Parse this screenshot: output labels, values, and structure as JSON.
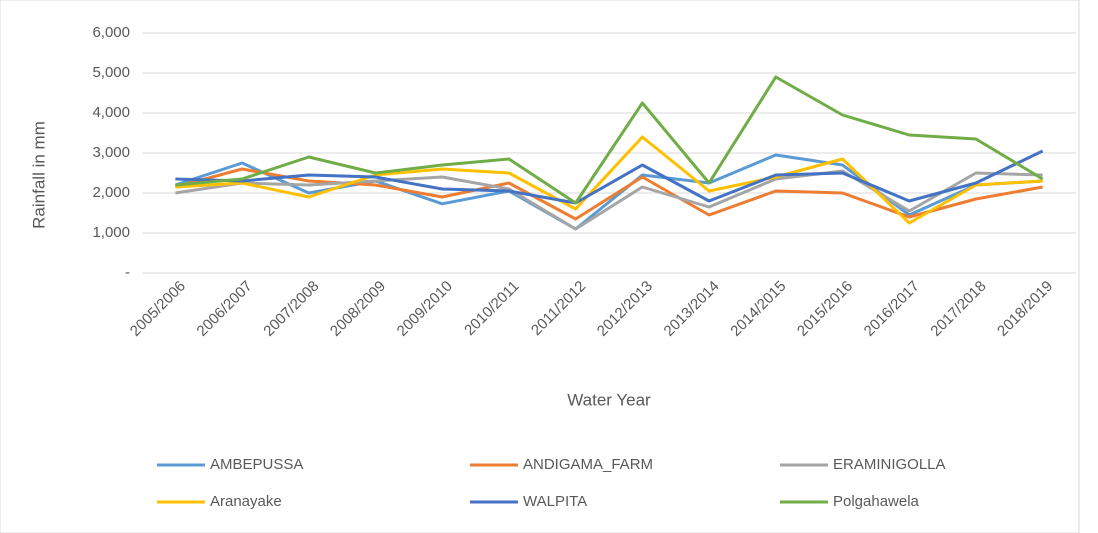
{
  "chart_data": {
    "type": "line",
    "y_label": "Rainfall in mm",
    "x_label": "Water Year",
    "categories": [
      "2005/2006",
      "2006/2007",
      "2007/2008",
      "2008/2009",
      "2009/2010",
      "2010/2011",
      "2011/2012",
      "2012/2013",
      "2013/2014",
      "2014/2015",
      "2015/2016",
      "2016/2017",
      "2017/2018",
      "2018/2019"
    ],
    "series": [
      {
        "name": "AMBEPUSSA",
        "color": "#5b9bd5",
        "values": [
          2200,
          2750,
          2000,
          2300,
          1730,
          2050,
          1100,
          2450,
          2250,
          2950,
          2700,
          1450,
          2200,
          2300
        ]
      },
      {
        "name": "ANDIGAMA_FARM",
        "color": "#ed7d31",
        "values": [
          2150,
          2600,
          2300,
          2200,
          1900,
          2250,
          1350,
          2400,
          1450,
          2050,
          2000,
          1400,
          1850,
          2150
        ]
      },
      {
        "name": "ERAMINIGOLLA",
        "color": "#a5a5a5",
        "values": [
          2000,
          2250,
          2200,
          2300,
          2400,
          2100,
          1100,
          2150,
          1650,
          2350,
          2550,
          1550,
          2500,
          2450
        ]
      },
      {
        "name": "Aranayake",
        "color": "#ffc000",
        "values": [
          2150,
          2250,
          1900,
          2450,
          2600,
          2500,
          1600,
          3400,
          2050,
          2400,
          2850,
          1250,
          2200,
          2300
        ]
      },
      {
        "name": "WALPITA",
        "color": "#4472c4",
        "values": [
          2350,
          2300,
          2450,
          2400,
          2100,
          2050,
          1750,
          2700,
          1800,
          2450,
          2500,
          1800,
          2250,
          3050
        ]
      },
      {
        "name": "Polgahawela",
        "color": "#70ad47",
        "values": [
          2200,
          2350,
          2900,
          2500,
          2700,
          2850,
          1750,
          4250,
          2250,
          4900,
          3950,
          3450,
          3350,
          2350
        ]
      }
    ],
    "ylim": [
      0,
      6000
    ],
    "yticks": [
      {
        "value": 0,
        "label": "-"
      },
      {
        "value": 1000,
        "label": "1,000"
      },
      {
        "value": 2000,
        "label": "2,000"
      },
      {
        "value": 3000,
        "label": "3,000"
      },
      {
        "value": 4000,
        "label": "4,000"
      },
      {
        "value": 5000,
        "label": "5,000"
      },
      {
        "value": 6000,
        "label": "6,000"
      }
    ],
    "grid": true,
    "legend": "bottom"
  }
}
